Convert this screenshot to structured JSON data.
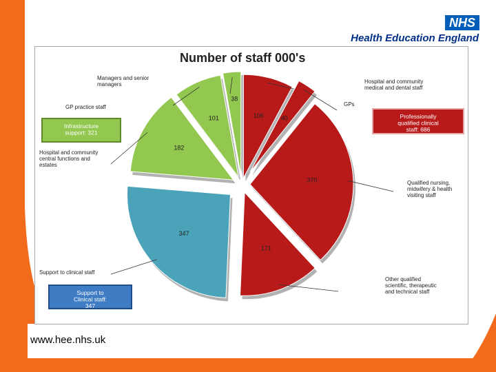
{
  "header": {
    "logo_box": "NHS",
    "logo_text": "Health Education England"
  },
  "footer": {
    "url": "www.hee.nhs.uk"
  },
  "colors": {
    "brand_orange": "#f26b1d",
    "nhs_blue": "#005eb8",
    "clinical_red": "#b81a1a",
    "infrastructure_green": "#92c84f",
    "support_teal": "#4aa3b8"
  },
  "chart_data": {
    "type": "pie",
    "title": "Number of staff 000's",
    "exploded": true,
    "series": [
      {
        "name": "Hospital and community medical and dental staff",
        "value": 106,
        "group": "clinical",
        "color": "#b81a1a"
      },
      {
        "name": "GPs",
        "value": 40,
        "group": "clinical",
        "color": "#b81a1a"
      },
      {
        "name": "Qualified nursing, midwifery & health visiting staff",
        "value": 370,
        "group": "clinical",
        "color": "#b81a1a"
      },
      {
        "name": "Other qualified scientific, therapeutic and technical staff",
        "value": 171,
        "group": "clinical",
        "color": "#b81a1a"
      },
      {
        "name": "Support to clinical staff",
        "value": 347,
        "group": "support",
        "color": "#4aa3b8"
      },
      {
        "name": "Hospital and community central functions and estates",
        "value": 182,
        "group": "infrastructure",
        "color": "#92c84f"
      },
      {
        "name": "GP practice staff",
        "value": 101,
        "group": "infrastructure",
        "color": "#92c84f"
      },
      {
        "name": "Managers and senior managers",
        "value": 38,
        "group": "infrastructure",
        "color": "#92c84f"
      }
    ],
    "group_labels": [
      {
        "group": "clinical",
        "text": "Professionally qualified clinical staff: 686"
      },
      {
        "group": "infrastructure",
        "text": "Infrastructure support: 321"
      },
      {
        "group": "support",
        "text": "Support to Clinical staff: 347"
      }
    ]
  }
}
